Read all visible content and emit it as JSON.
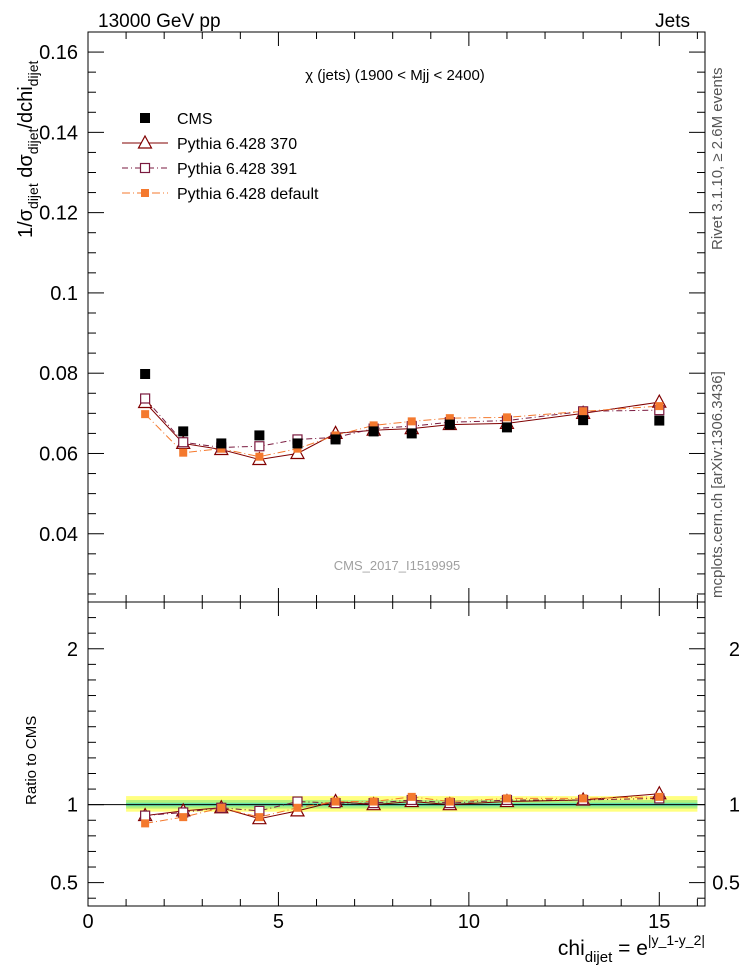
{
  "header": {
    "left": "13000 GeV pp",
    "right": "Jets"
  },
  "side_labels": {
    "rivet": "Rivet 3.1.10, ≥ 2.6M events",
    "mcplots": "mcplots.cern.ch [arXiv:1306.3436]"
  },
  "watermark": "CMS_2017_I1519995",
  "chart_data": {
    "type": "scatter",
    "title": "χ (jets) (1900 < Mjj < 2400)",
    "ylabel_main": "1/σdijet dσdijet/dchidijet",
    "ylabel_ratio": "Ratio to CMS",
    "xlabel": "chidijet = e|y_1-y_2|",
    "xlim": [
      0,
      16.2
    ],
    "ylim_main": [
      0.023,
      0.165
    ],
    "ylim_ratio": [
      0.35,
      2.3
    ],
    "x_ticks": [
      "0",
      "5",
      "10",
      "15"
    ],
    "y_ticks_main": [
      "0.04",
      "0.06",
      "0.08",
      "0.1",
      "0.12",
      "0.14",
      "0.16"
    ],
    "y_ticks_ratio": [
      "0.5",
      "1",
      "2"
    ],
    "legend_position": "top-left",
    "x": [
      1.5,
      2.5,
      3.5,
      4.5,
      5.5,
      6.5,
      7.5,
      8.5,
      9.5,
      11,
      13,
      15
    ],
    "bin_edges": [
      1,
      2,
      3,
      4,
      5,
      6,
      7,
      8,
      9,
      10,
      12,
      14,
      16
    ],
    "series": [
      {
        "name": "CMS",
        "color": "#000000",
        "marker": "filled-square",
        "values": [
          0.0798,
          0.0655,
          0.0625,
          0.0645,
          0.0625,
          0.0635,
          0.0655,
          0.065,
          0.0672,
          0.0665,
          0.0683,
          0.0682
        ],
        "ratio": [
          1,
          1,
          1,
          1,
          1,
          1,
          1,
          1,
          1,
          1,
          1,
          1
        ]
      },
      {
        "name": "Pythia 6.428 370",
        "color": "#800000",
        "marker": "open-triangle",
        "values": [
          0.0727,
          0.0625,
          0.061,
          0.0585,
          0.06,
          0.065,
          0.0658,
          0.0662,
          0.0672,
          0.0675,
          0.07,
          0.0728
        ],
        "ratio": [
          0.93,
          0.96,
          0.98,
          0.91,
          0.96,
          1.02,
          1.0,
          1.02,
          1.0,
          1.02,
          1.03,
          1.07
        ]
      },
      {
        "name": "Pythia 6.428 391",
        "color": "#7a1a3f",
        "marker": "open-square",
        "values": [
          0.0737,
          0.0628,
          0.0615,
          0.0618,
          0.0635,
          0.064,
          0.0662,
          0.0668,
          0.0678,
          0.0682,
          0.0705,
          0.0708
        ],
        "ratio": [
          0.93,
          0.95,
          0.98,
          0.96,
          1.02,
          1.01,
          1.01,
          1.03,
          1.01,
          1.03,
          1.03,
          1.04
        ]
      },
      {
        "name": "Pythia 6.428 default",
        "color": "#f4792e",
        "marker": "filled-square",
        "values": [
          0.0698,
          0.0602,
          0.0612,
          0.0592,
          0.0612,
          0.0645,
          0.067,
          0.068,
          0.0688,
          0.069,
          0.0705,
          0.0718
        ],
        "ratio": [
          0.88,
          0.92,
          0.98,
          0.92,
          0.98,
          1.02,
          1.02,
          1.05,
          1.02,
          1.04,
          1.04,
          1.05
        ]
      }
    ]
  }
}
